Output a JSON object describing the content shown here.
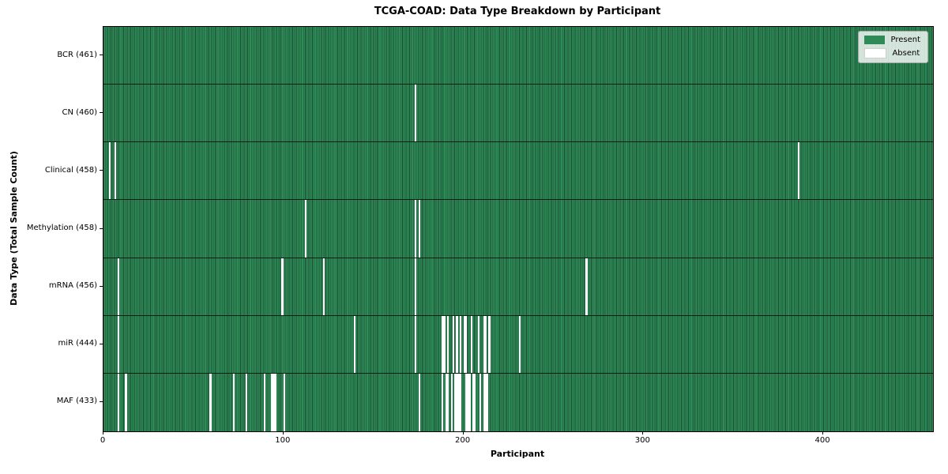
{
  "chart_data": {
    "type": "heatmap",
    "title": "TCGA-COAD: Data Type Breakdown by Participant",
    "xlabel": "Participant",
    "ylabel": "Data Type (Total Sample Count)",
    "n_participants": 461,
    "x_ticks": [
      0,
      100,
      200,
      300,
      400
    ],
    "grid": false,
    "legend_position": "upper right",
    "legend": {
      "present_label": "Present",
      "absent_label": "Absent"
    },
    "colors": {
      "present": "#2e8b57",
      "absent": "#ffffff",
      "cell_edge": "rgba(0,0,0,0.45)",
      "row_divider": "rgba(0,0,0,0.75)"
    },
    "rows": [
      {
        "name": "BCR",
        "label": "BCR (461)",
        "count": 461,
        "absent": []
      },
      {
        "name": "CN",
        "label": "CN (460)",
        "count": 460,
        "absent": [
          173
        ]
      },
      {
        "name": "Clinical",
        "label": "Clinical (458)",
        "count": 458,
        "absent": [
          3,
          6,
          386
        ]
      },
      {
        "name": "Methylation",
        "label": "Methylation (458)",
        "count": 458,
        "absent": [
          112,
          173,
          175
        ]
      },
      {
        "name": "mRNA",
        "label": "mRNA (456)",
        "count": 456,
        "absent": [
          8,
          99,
          122,
          173,
          268
        ]
      },
      {
        "name": "miR",
        "label": "miR (444)",
        "count": 444,
        "absent": [
          8,
          139,
          173,
          188,
          189,
          191,
          194,
          196,
          198,
          200,
          201,
          204,
          208,
          211,
          212,
          214,
          231
        ]
      },
      {
        "name": "MAF",
        "label": "MAF (433)",
        "count": 433,
        "absent": [
          8,
          12,
          59,
          72,
          79,
          89,
          93,
          94,
          95,
          100,
          175,
          188,
          190,
          191,
          193,
          195,
          196,
          197,
          198,
          201,
          202,
          203,
          205,
          206,
          209,
          211,
          212,
          213
        ]
      }
    ]
  }
}
